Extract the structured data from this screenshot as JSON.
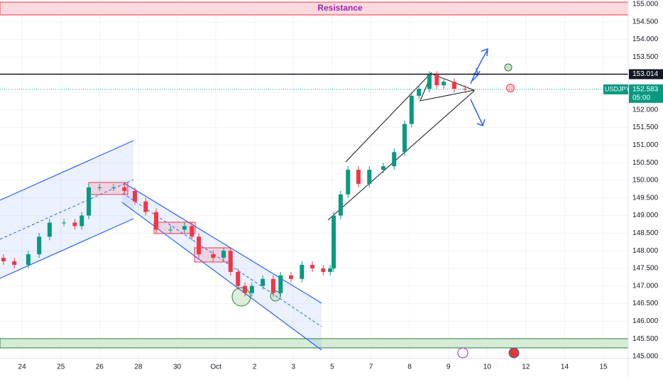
{
  "chart_data": {
    "type": "candlestick",
    "resistance_label": "Resistance",
    "symbol": "USDJPY",
    "countdown": "05:00",
    "level": {
      "value": 153.014,
      "label": "153.014"
    },
    "last": {
      "value": 152.583,
      "label": "152.583"
    },
    "up_color": "#089981",
    "down_color": "#f23645",
    "grid": true,
    "xlim": [
      -0.57,
      15.64
    ],
    "xticks": [
      {
        "value": 0,
        "label": "24"
      },
      {
        "value": 1,
        "label": "25"
      },
      {
        "value": 2,
        "label": "26"
      },
      {
        "value": 3,
        "label": "28"
      },
      {
        "value": 4,
        "label": "30"
      },
      {
        "value": 5,
        "label": "Oct"
      },
      {
        "value": 6,
        "label": "2"
      },
      {
        "value": 7,
        "label": "3"
      },
      {
        "value": 8,
        "label": "5"
      },
      {
        "value": 9,
        "label": "7"
      },
      {
        "value": 10,
        "label": "8"
      },
      {
        "value": 11,
        "label": "9"
      },
      {
        "value": 12,
        "label": "10"
      },
      {
        "value": 13,
        "label": "12"
      },
      {
        "value": 14,
        "label": "14"
      },
      {
        "value": 15,
        "label": "15"
      }
    ],
    "ylim": [
      145.0,
      155.0
    ],
    "yticks": [
      {
        "value": 145.0,
        "label": "145.000"
      },
      {
        "value": 145.5,
        "label": "145.500"
      },
      {
        "value": 146.0,
        "label": "146.000"
      },
      {
        "value": 146.5,
        "label": "146.500"
      },
      {
        "value": 147.0,
        "label": "147.000"
      },
      {
        "value": 147.5,
        "label": "147.500"
      },
      {
        "value": 148.0,
        "label": "148.000"
      },
      {
        "value": 148.5,
        "label": "148.500"
      },
      {
        "value": 149.0,
        "label": "149.000"
      },
      {
        "value": 149.5,
        "label": "149.500"
      },
      {
        "value": 150.0,
        "label": "150.000"
      },
      {
        "value": 150.5,
        "label": "150.500"
      },
      {
        "value": 151.0,
        "label": "151.000"
      },
      {
        "value": 151.5,
        "label": "151.500"
      },
      {
        "value": 152.0,
        "label": "152.000"
      },
      {
        "value": 152.5,
        "label": "152.500"
      },
      {
        "value": 153.5,
        "label": "153.500"
      },
      {
        "value": 154.0,
        "label": "154.000"
      },
      {
        "value": 154.5,
        "label": "154.500"
      },
      {
        "value": 155.0,
        "label": "155.000"
      }
    ],
    "x": [
      -0.48,
      -0.2,
      0.16,
      0.44,
      0.71,
      1.08,
      1.36,
      1.54,
      1.72,
      2.0,
      2.36,
      2.64,
      2.91,
      3.19,
      3.46,
      3.83,
      4.19,
      4.38,
      4.56,
      4.93,
      5.2,
      5.38,
      5.57,
      5.75,
      5.93,
      6.21,
      6.48,
      6.67,
      6.94,
      7.22,
      7.49,
      7.77,
      7.95,
      8.04,
      8.22,
      8.41,
      8.68,
      8.96,
      9.32,
      9.6,
      9.87,
      10.05,
      10.24,
      10.51,
      10.7,
      10.88,
      11.15,
      11.43
    ],
    "open": [
      147.8,
      147.7,
      147.6,
      147.9,
      148.4,
      148.8,
      148.8,
      148.7,
      149.0,
      149.8,
      149.8,
      149.8,
      149.7,
      149.4,
      149.1,
      148.6,
      148.6,
      148.7,
      148.4,
      147.9,
      147.8,
      148.0,
      147.4,
      147.0,
      146.8,
      147.0,
      147.2,
      146.8,
      147.3,
      147.2,
      147.6,
      147.5,
      147.4,
      147.5,
      149.0,
      149.6,
      150.3,
      149.9,
      150.3,
      150.4,
      150.8,
      151.6,
      152.4,
      152.6,
      153.0,
      152.7,
      152.8,
      152.6
    ],
    "high": [
      147.9,
      147.8,
      148.0,
      148.5,
      148.9,
      148.9,
      148.9,
      149.1,
      149.9,
      149.9,
      149.9,
      149.9,
      149.8,
      149.5,
      149.2,
      148.7,
      148.8,
      148.8,
      148.5,
      148.0,
      148.1,
      148.1,
      147.5,
      147.1,
      147.1,
      147.3,
      147.3,
      147.4,
      147.4,
      147.7,
      147.7,
      147.6,
      147.6,
      149.1,
      149.7,
      150.4,
      150.4,
      150.4,
      150.5,
      150.9,
      151.7,
      152.5,
      152.7,
      153.1,
      153.1,
      152.9,
      152.9,
      152.7
    ],
    "low": [
      147.6,
      147.5,
      147.5,
      147.8,
      148.3,
      148.7,
      148.6,
      148.6,
      148.9,
      149.7,
      149.7,
      149.6,
      149.3,
      149.0,
      148.5,
      148.5,
      148.5,
      148.3,
      147.8,
      147.7,
      147.7,
      147.3,
      146.9,
      146.7,
      146.7,
      146.9,
      146.7,
      146.7,
      147.1,
      147.1,
      147.4,
      147.3,
      147.3,
      147.4,
      148.9,
      149.5,
      149.8,
      149.8,
      150.2,
      150.3,
      150.7,
      151.5,
      152.3,
      152.5,
      152.6,
      152.6,
      152.5,
      152.483
    ],
    "close": [
      147.7,
      147.6,
      147.9,
      148.4,
      148.8,
      148.8,
      148.7,
      149.0,
      149.8,
      149.8,
      149.8,
      149.7,
      149.4,
      149.1,
      148.6,
      148.6,
      148.7,
      148.4,
      147.9,
      147.8,
      148.0,
      147.4,
      147.0,
      146.8,
      147.0,
      147.2,
      146.8,
      147.3,
      147.2,
      147.6,
      147.5,
      147.4,
      147.5,
      149.0,
      149.6,
      150.3,
      149.9,
      150.3,
      150.4,
      150.8,
      151.6,
      152.4,
      152.6,
      153.0,
      152.7,
      152.8,
      152.6,
      152.583
    ]
  }
}
